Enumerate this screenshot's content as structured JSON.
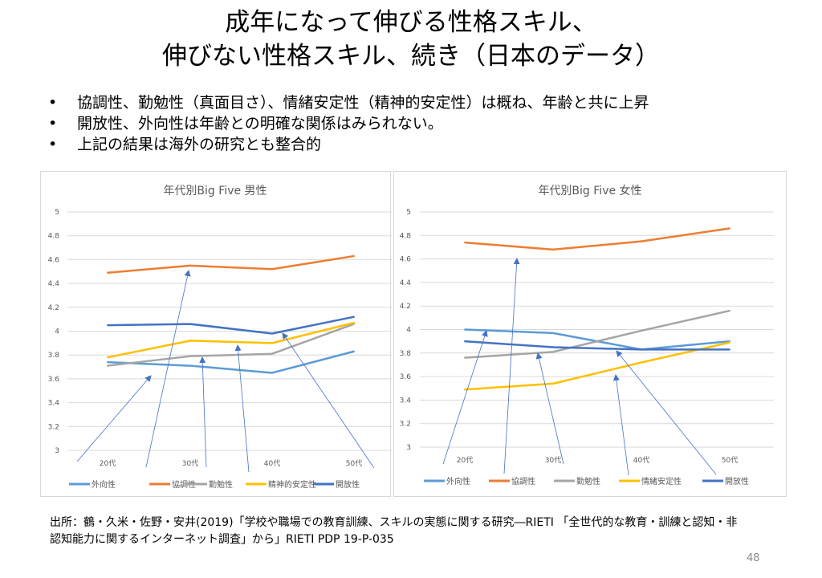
{
  "slide": {
    "title_line1": "成年になって伸びる性格スキル、",
    "title_line2": "伸びない性格スキル、続き（日本のデータ）",
    "bullets": [
      "協調性、勤勉性（真面目さ）、情緒安定性（精神的安定性）は概ね、年齢と共に上昇",
      "開放性、外向性は年齢との明確な関係はみられない。",
      "上記の結果は海外の研究とも整合的"
    ],
    "citation_line1": "出所：鶴・久米・佐野・安井(2019)「学校や職場での教育訓練、スキルの実態に関する研究―RIETI 「全世代的な教育・訓練と認知・非",
    "citation_line2": "認知能力に関するインターネット調査」から」RIETI PDP 19-P-035",
    "page_number": "48"
  },
  "chart_data": [
    {
      "type": "line",
      "title": "年代別Big Five 男性",
      "categories": [
        "20代",
        "30代",
        "40代",
        "50代"
      ],
      "ylim": [
        3,
        5
      ],
      "yticks": [
        "3",
        "3.2",
        "3.4",
        "3.6",
        "3.8",
        "4",
        "4.2",
        "4.4",
        "4.6",
        "4.8",
        "5"
      ],
      "grid": true,
      "legend": "bottom",
      "series": [
        {
          "name": "外向性",
          "color": "#5B9BD5",
          "values": [
            3.74,
            3.71,
            3.65,
            3.83
          ]
        },
        {
          "name": "協調性",
          "color": "#ED7D31",
          "values": [
            4.49,
            4.55,
            4.52,
            4.63
          ]
        },
        {
          "name": "勤勉性",
          "color": "#A5A5A5",
          "values": [
            3.71,
            3.79,
            3.81,
            4.06
          ]
        },
        {
          "name": "精神的安定性",
          "color": "#FFC000",
          "values": [
            3.78,
            3.92,
            3.9,
            4.07
          ]
        },
        {
          "name": "開放性",
          "color": "#4472C4",
          "values": [
            4.05,
            4.06,
            3.98,
            4.12
          ]
        }
      ]
    },
    {
      "type": "line",
      "title": "年代別Big Five 女性",
      "categories": [
        "20代",
        "30代",
        "40代",
        "50代"
      ],
      "ylim": [
        3,
        5
      ],
      "yticks": [
        "3",
        "3.2",
        "3.4",
        "3.6",
        "3.8",
        "4",
        "4.2",
        "4.4",
        "4.6",
        "4.8",
        "5"
      ],
      "grid": true,
      "legend": "bottom",
      "series": [
        {
          "name": "外向性",
          "color": "#5B9BD5",
          "values": [
            4.0,
            3.97,
            3.83,
            3.9
          ]
        },
        {
          "name": "協調性",
          "color": "#ED7D31",
          "values": [
            4.74,
            4.68,
            4.75,
            4.86
          ]
        },
        {
          "name": "勤勉性",
          "color": "#A5A5A5",
          "values": [
            3.76,
            3.81,
            3.99,
            4.16
          ]
        },
        {
          "name": "情緒安定性",
          "color": "#FFC000",
          "values": [
            3.49,
            3.54,
            3.72,
            3.89
          ]
        },
        {
          "name": "開放性",
          "color": "#4472C4",
          "values": [
            3.9,
            3.85,
            3.83,
            3.83
          ]
        }
      ]
    }
  ]
}
